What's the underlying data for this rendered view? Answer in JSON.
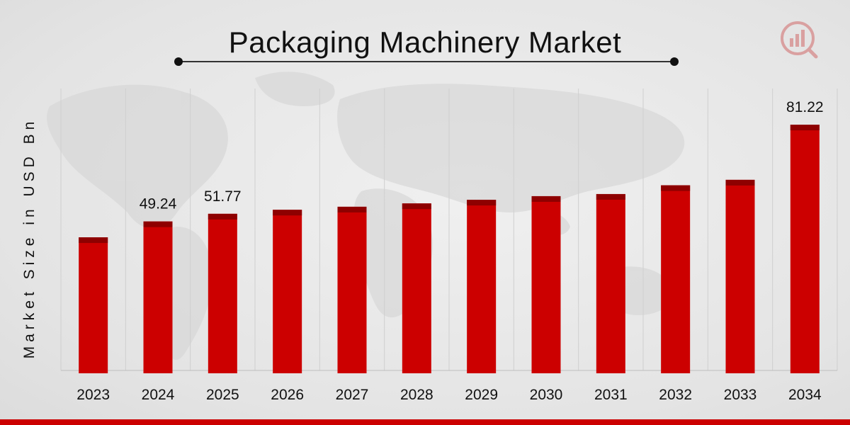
{
  "header": {
    "title": "Packaging Machinery Market"
  },
  "colors": {
    "bar_fill": "#cc0000",
    "bar_cap": "#8e0000",
    "band": "#cc0000"
  },
  "chart_data": {
    "type": "bar",
    "title": "Packaging Machinery Market",
    "xlabel": "",
    "ylabel": "Market Size in USD Bn",
    "categories": [
      "2023",
      "2024",
      "2025",
      "2026",
      "2027",
      "2028",
      "2029",
      "2030",
      "2031",
      "2032",
      "2033",
      "2034"
    ],
    "values": [
      44.0,
      49.24,
      51.77,
      53.1,
      54.1,
      55.2,
      56.4,
      57.6,
      58.3,
      61.2,
      63.0,
      81.22
    ],
    "data_labels": [
      "",
      "49.24",
      "51.77",
      "",
      "",
      "",
      "",
      "",
      "",
      "",
      "",
      "81.22"
    ],
    "legend": "none",
    "grid": "vertical category separators"
  },
  "logo": {
    "name": "brand-logo-icon"
  }
}
